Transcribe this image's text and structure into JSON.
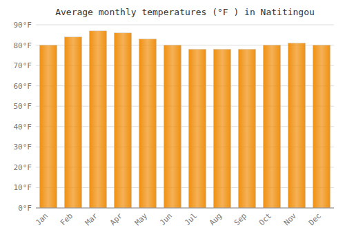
{
  "chart_data": {
    "type": "bar",
    "title": "Average monthly temperatures (°F ) in Natitingou",
    "categories": [
      "Jan",
      "Feb",
      "Mar",
      "Apr",
      "May",
      "Jun",
      "Jul",
      "Aug",
      "Sep",
      "Oct",
      "Nov",
      "Dec"
    ],
    "values": [
      80,
      84,
      87,
      86,
      83,
      80,
      78,
      78,
      78,
      80,
      81,
      80
    ],
    "color": "#F09010",
    "ylim": [
      0,
      90
    ],
    "yticks": [
      {
        "value": 0,
        "label": "0°F"
      },
      {
        "value": 10,
        "label": "10°F"
      },
      {
        "value": 20,
        "label": "20°F"
      },
      {
        "value": 30,
        "label": "30°F"
      },
      {
        "value": 40,
        "label": "40°F"
      },
      {
        "value": 50,
        "label": "50°F"
      },
      {
        "value": 60,
        "label": "60°F"
      },
      {
        "value": 70,
        "label": "70°F"
      },
      {
        "value": 80,
        "label": "80°F"
      },
      {
        "value": 90,
        "label": "90°F"
      }
    ],
    "grid": true
  }
}
